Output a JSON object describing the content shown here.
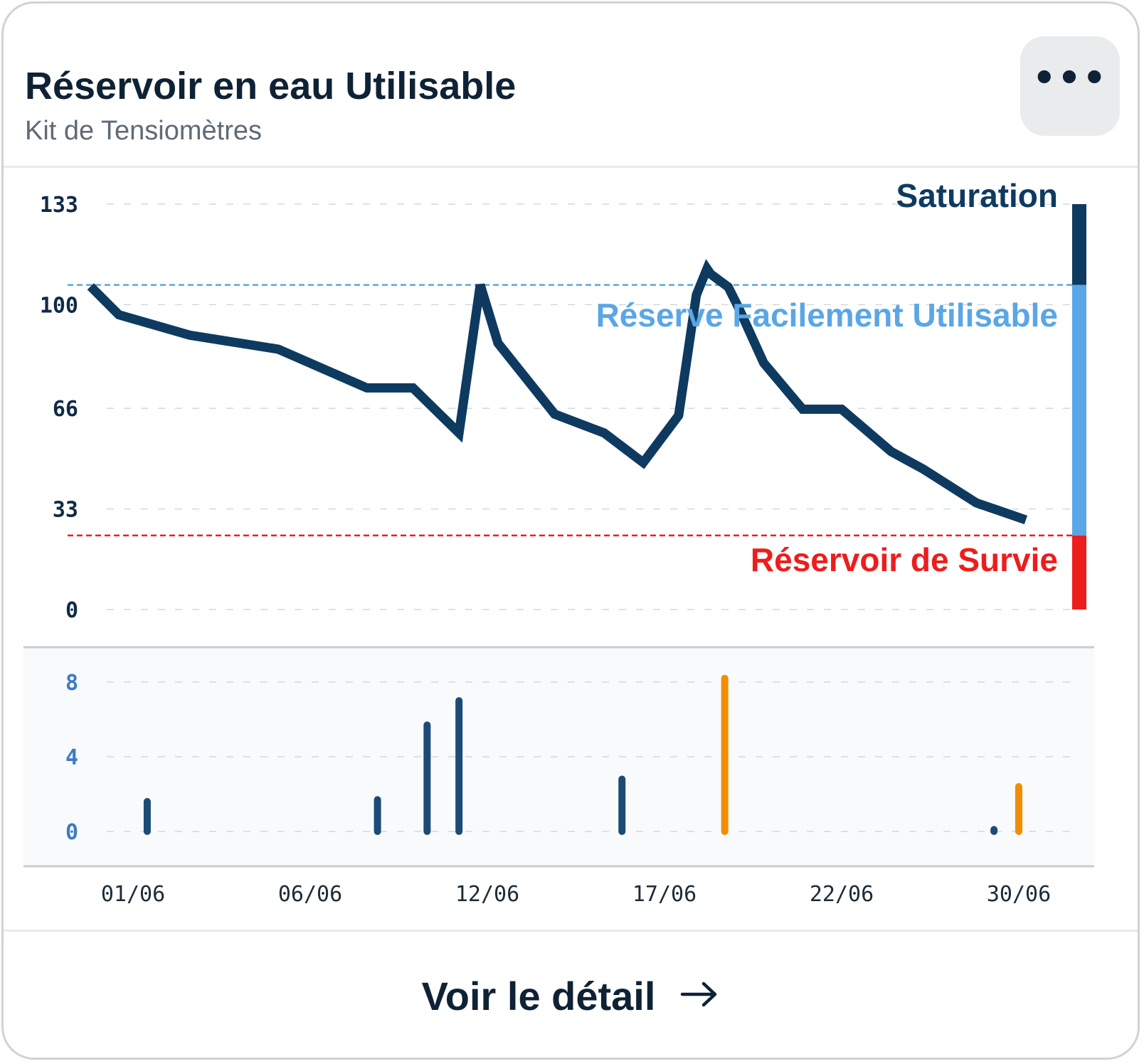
{
  "header": {
    "title": "Réservoir en eau Utilisable",
    "subtitle": "Kit de Tensiomètres",
    "menu_label": "•••"
  },
  "footer": {
    "link_label": "Voir le détail"
  },
  "icons": {
    "menu": "more-horizontal-icon",
    "arrow": "arrow-right-icon"
  },
  "colors": {
    "navy": "#0e3a60",
    "light_blue": "#5aa6e6",
    "red": "#ee1d1d",
    "orange": "#f28c00",
    "bar_navy": "#1d4b78"
  },
  "chart_data": [
    {
      "type": "line",
      "title": "",
      "ylim": [
        0,
        133
      ],
      "yticks": [
        "133",
        "100",
        "66",
        "33",
        "0"
      ],
      "ytick_values": [
        133,
        100,
        66,
        33,
        0
      ],
      "grid": true,
      "zones": [
        {
          "label": "Saturation",
          "from": 106.5,
          "to": 133,
          "color": "#0e3a60"
        },
        {
          "label": "Réserve Facilement Utilisable",
          "from": 24.3,
          "to": 106.5,
          "color": "#5aa6e6"
        },
        {
          "label": "Réservoir de Survie",
          "from": 0,
          "to": 24.3,
          "color": "#ee1d1d"
        }
      ],
      "reference_lines": [
        {
          "value": 106.5,
          "color": "#5aa6e6"
        },
        {
          "value": 24.3,
          "color": "#ee1d1d"
        }
      ],
      "series": [
        {
          "x": [
            -0.2,
            0.6,
            2.6,
            5.1,
            7.6,
            8.9,
            10.2,
            10.8,
            11.3,
            12.9,
            14.3,
            15.4,
            16.4,
            16.9,
            17.2,
            17.3,
            17.8,
            18.1,
            18.8,
            19.9,
            21.0,
            22.4,
            23.3,
            24.8,
            26.2
          ],
          "y": [
            106.0,
            96.7,
            90.0,
            85.4,
            72.7,
            72.7,
            57.9,
            106.5,
            87.4,
            64.1,
            57.9,
            48.2,
            63.7,
            103.2,
            111.8,
            110.1,
            105.8,
            98.8,
            80.9,
            65.7,
            65.7,
            51.8,
            46.1,
            35.0,
            29.4
          ]
        }
      ]
    },
    {
      "type": "bar",
      "title": "",
      "ylim": [
        0,
        8
      ],
      "yticks": [
        "8",
        "4",
        "0"
      ],
      "ytick_values": [
        8,
        4,
        0
      ],
      "grid": true,
      "x_ticks": [
        "01/06",
        "06/06",
        "12/06",
        "17/06",
        "22/06",
        "30/06"
      ],
      "x_tick_values": [
        1,
        6,
        11,
        16,
        21,
        26
      ],
      "series": [
        {
          "name": "",
          "color": "#1d4b78",
          "x": [
            1.4,
            7.9,
            9.3,
            10.2,
            14.8,
            25.3
          ],
          "values": [
            1.6,
            1.7,
            5.7,
            7.0,
            2.8,
            0.1
          ]
        },
        {
          "name": "",
          "color": "#f28c00",
          "x": [
            17.7,
            26.0
          ],
          "values": [
            8.2,
            2.4
          ]
        }
      ]
    }
  ]
}
